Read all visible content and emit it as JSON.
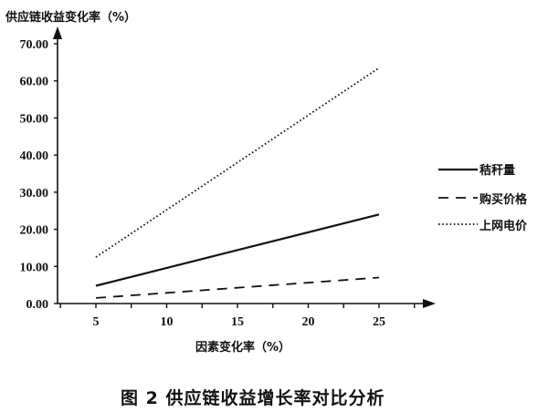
{
  "caption": "图 2   供应链收益增长率对比分析",
  "chart_data": {
    "type": "line",
    "xlabel": "因素变化率（%）",
    "ylabel": "供应链收益变化率（%）",
    "xlim": [
      5,
      25
    ],
    "ylim": [
      0,
      70
    ],
    "xticks": [
      5,
      10,
      15,
      20,
      25
    ],
    "yticks": [
      "0.00",
      "10.00",
      "20.00",
      "30.00",
      "40.00",
      "50.00",
      "60.00",
      "70.00"
    ],
    "grid": false,
    "legend_position": "right",
    "series": [
      {
        "name": "秸秆量",
        "style": "solid",
        "x": [
          5,
          25
        ],
        "y": [
          4.8,
          24.0
        ]
      },
      {
        "name": "购买价格",
        "style": "dashed",
        "x": [
          5,
          25
        ],
        "y": [
          1.5,
          7.0
        ]
      },
      {
        "name": "上网电价",
        "style": "dotted",
        "x": [
          5,
          25
        ],
        "y": [
          12.5,
          63.5
        ]
      }
    ]
  }
}
